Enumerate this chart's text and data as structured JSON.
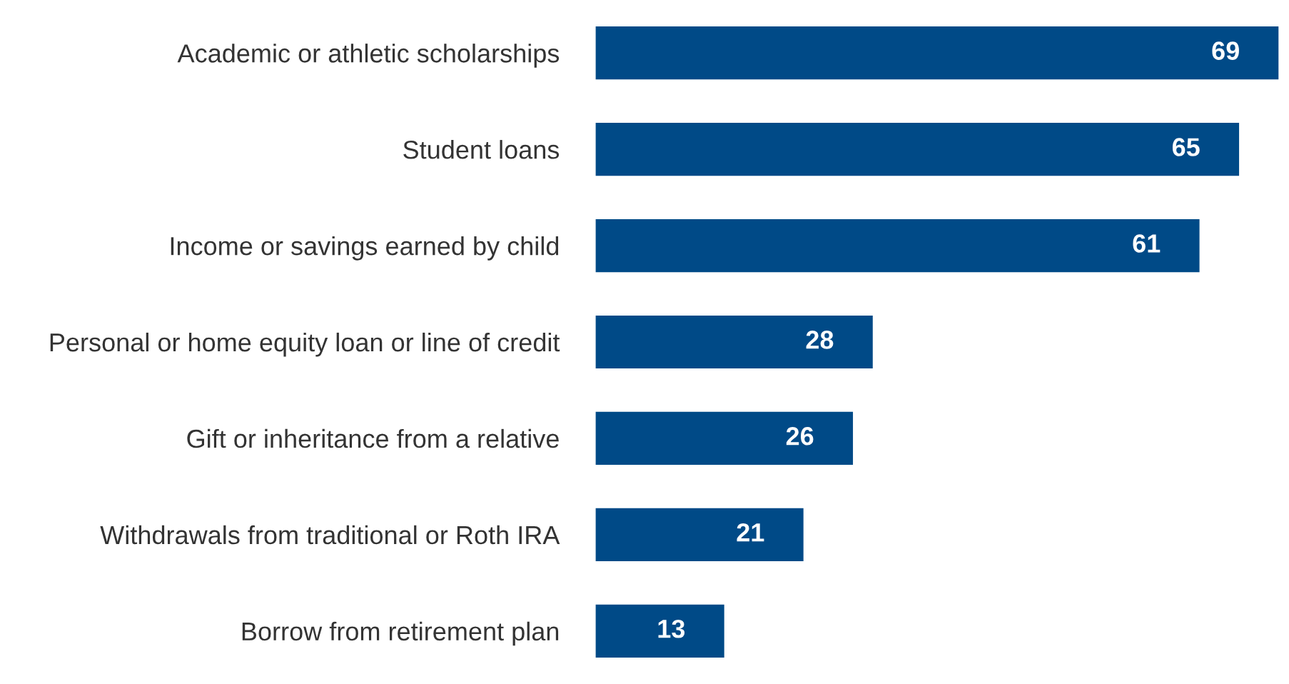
{
  "chart_data": {
    "type": "bar",
    "orientation": "horizontal",
    "categories": [
      "Academic or athletic scholarships",
      "Student loans",
      "Income or savings earned by child",
      "Personal or home equity loan or line of credit",
      "Gift or inheritance from a relative",
      "Withdrawals from traditional or Roth IRA",
      "Borrow from retirement plan"
    ],
    "values": [
      69,
      65,
      61,
      28,
      26,
      21,
      13
    ],
    "color": "#004a87",
    "data_labels": true
  }
}
